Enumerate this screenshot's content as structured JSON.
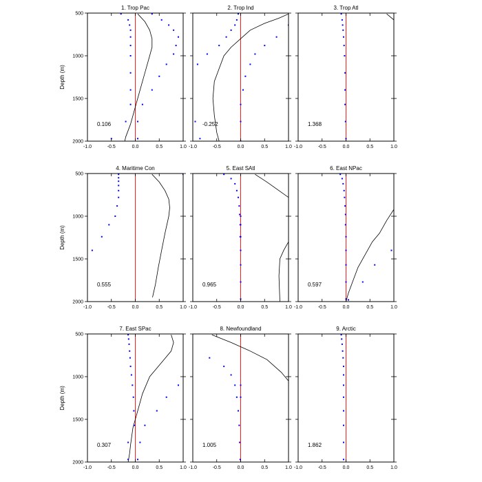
{
  "chart_data": {
    "type": "line",
    "layout": "3x3 panel grid",
    "ylabel": "Depth (m)",
    "xlim": [
      -1.0,
      1.0
    ],
    "ylim": [
      2000,
      500
    ],
    "y_inverted": true,
    "x_ticks": [
      -1.0,
      -0.5,
      0.0,
      0.5,
      1.0
    ],
    "x_tick_labels": [
      "-1.0",
      "-0.5",
      "0.0",
      "0.5",
      "1.0"
    ],
    "y_ticks": [
      500,
      1000,
      1500,
      2000
    ],
    "y_tick_labels": [
      "500",
      "1000",
      "1500",
      "2000"
    ],
    "zero_line_color": "#ff0000",
    "line_color": "#000000",
    "dot_color": "#0000ff",
    "panels": [
      {
        "title": "1. Trop Pac",
        "value_label": "0.106",
        "line": {
          "x": [
            0.05,
            0.2,
            0.3,
            0.35,
            0.35,
            0.3,
            0.2,
            0.1,
            0.0,
            -0.1,
            -0.2,
            -0.22
          ],
          "y": [
            510,
            600,
            700,
            800,
            900,
            1000,
            1200,
            1400,
            1600,
            1800,
            1950,
            2000
          ]
        },
        "dots": [
          {
            "x": [
              -0.3,
              -0.15,
              -0.12,
              -0.1,
              -0.1,
              -0.1,
              -0.1,
              -0.1,
              -0.1,
              -0.1,
              -0.2,
              -0.5
            ],
            "y": [
              510,
              580,
              640,
              700,
              780,
              880,
              1000,
              1200,
              1400,
              1570,
              1770,
              1970
            ]
          },
          {
            "x": [
              0.35,
              0.55,
              0.7,
              0.8,
              0.9,
              0.85,
              0.8,
              0.65,
              0.5,
              0.35,
              0.15,
              0.05,
              0.05
            ],
            "y": [
              510,
              580,
              640,
              700,
              780,
              880,
              980,
              1100,
              1240,
              1400,
              1570,
              1770,
              1970
            ]
          }
        ]
      },
      {
        "title": "2. Trop Ind",
        "value_label": "-0.252",
        "line": {
          "x": [
            1.0,
            0.8,
            0.5,
            0.2,
            0.0,
            -0.2,
            -0.35,
            -0.45,
            -0.55,
            -0.58,
            -0.55,
            -0.5,
            -0.45
          ],
          "y": [
            510,
            560,
            620,
            700,
            800,
            900,
            1000,
            1150,
            1300,
            1500,
            1700,
            1900,
            2000
          ]
        },
        "dots": [
          {
            "x": [
              -0.05,
              -0.08,
              -0.12,
              -0.2,
              -0.3,
              -0.45,
              -0.7,
              -0.9,
              -0.95,
              -0.85
            ],
            "y": [
              510,
              580,
              640,
              700,
              780,
              880,
              980,
              1100,
              1770,
              1970
            ]
          },
          {
            "x": [
              0.0,
              0.0,
              0.0,
              0.05,
              0.1,
              0.2,
              0.3,
              0.5,
              0.75,
              1.0
            ],
            "y": [
              2000,
              1770,
              1570,
              1400,
              1240,
              1100,
              980,
              880,
              780,
              640
            ]
          }
        ]
      },
      {
        "title": "3. Trop Atl",
        "value_label": "1.368",
        "line": {
          "x": [
            0.85,
            1.0
          ],
          "y": [
            510,
            580
          ]
        },
        "dots": [
          {
            "x": [
              -0.1,
              -0.08,
              -0.07,
              -0.06,
              -0.05,
              -0.04,
              -0.03,
              -0.02,
              -0.02,
              -0.02,
              -0.01,
              0.0
            ],
            "y": [
              510,
              580,
              640,
              700,
              780,
              880,
              1000,
              1200,
              1400,
              1570,
              1770,
              1970
            ]
          }
        ]
      },
      {
        "title": "4. Maritime Con",
        "value_label": "0.555",
        "line": {
          "x": [
            0.35,
            0.5,
            0.62,
            0.7,
            0.72,
            0.7,
            0.62,
            0.55,
            0.48,
            0.42,
            0.38,
            0.36
          ],
          "y": [
            510,
            600,
            700,
            800,
            900,
            1000,
            1200,
            1400,
            1600,
            1800,
            1900,
            1950
          ]
        },
        "dots": [
          {
            "x": [
              -0.35,
              -0.35,
              -0.35,
              -0.35,
              -0.35,
              -0.35,
              -0.38,
              -0.42,
              -0.55,
              -0.7,
              -0.9
            ],
            "y": [
              510,
              550,
              590,
              640,
              700,
              780,
              880,
              1000,
              1100,
              1240,
              1400
            ]
          },
          {
            "x": [
              1.0
            ],
            "y": [
              510
            ]
          }
        ]
      },
      {
        "title": "5. East SAtl",
        "value_label": "0.965",
        "line": {
          "x": [
            0.3,
            0.55,
            0.8,
            1.0
          ],
          "y": [
            510,
            600,
            700,
            780
          ]
        },
        "line2": {
          "x": [
            1.0,
            0.9,
            0.82,
            0.8,
            0.82
          ],
          "y": [
            1300,
            1400,
            1500,
            1700,
            2000
          ]
        },
        "dots": [
          {
            "x": [
              -0.35,
              -0.2,
              -0.12,
              -0.08,
              -0.05,
              -0.03,
              -0.02,
              -0.01,
              -0.01,
              0.0,
              0.0,
              0.0,
              0.0,
              0.0,
              0.0,
              0.0
            ],
            "y": [
              510,
              560,
              620,
              700,
              780,
              880,
              980,
              1100,
              1240,
              1400,
              1570,
              1770,
              1970,
              1240,
              1100,
              1000
            ]
          }
        ]
      },
      {
        "title": "6. East NPac",
        "value_label": "0.597",
        "line": {
          "x": [
            0.0,
            0.05,
            0.15,
            0.25,
            0.4,
            0.55,
            0.7,
            0.85,
            1.0
          ],
          "y": [
            2000,
            1900,
            1750,
            1600,
            1450,
            1300,
            1200,
            1050,
            920
          ]
        },
        "dots": [
          {
            "x": [
              -0.12,
              -0.08,
              -0.06,
              -0.04,
              -0.03,
              -0.02,
              -0.01,
              -0.01,
              0.0,
              0.0,
              0.0,
              0.0,
              0.0,
              0.05
            ],
            "y": [
              510,
              560,
              620,
              700,
              780,
              880,
              980,
              1100,
              1240,
              1400,
              1570,
              1770,
              1970,
              1980
            ]
          },
          {
            "x": [
              0.35,
              0.6,
              0.95
            ],
            "y": [
              1770,
              1570,
              1400
            ]
          }
        ]
      },
      {
        "title": "7. East SPac",
        "value_label": "0.307",
        "line": {
          "x": [
            0.75,
            0.8,
            0.75,
            0.6,
            0.45,
            0.3,
            0.15,
            0.05,
            -0.05,
            -0.1,
            -0.12,
            -0.15
          ],
          "y": [
            510,
            600,
            700,
            800,
            900,
            1000,
            1200,
            1400,
            1600,
            1800,
            1900,
            2000
          ]
        },
        "dots": [
          {
            "x": [
              -0.15,
              -0.14,
              -0.13,
              -0.12,
              -0.11,
              -0.1,
              -0.08,
              -0.06,
              -0.04,
              -0.03,
              -0.02,
              -0.15,
              -0.15
            ],
            "y": [
              510,
              560,
              620,
              700,
              780,
              880,
              980,
              1100,
              1240,
              1400,
              1570,
              1770,
              1970
            ]
          },
          {
            "x": [
              0.9,
              0.65,
              0.45,
              0.2,
              0.1,
              0.05
            ],
            "y": [
              1100,
              1240,
              1400,
              1570,
              1770,
              1970
            ]
          }
        ]
      },
      {
        "title": "8. Newfoundland",
        "value_label": "1.005",
        "line": {
          "x": [
            -0.6,
            -0.2,
            0.2,
            0.55,
            0.85,
            1.0
          ],
          "y": [
            510,
            600,
            700,
            800,
            950,
            1050
          ]
        },
        "dots": [
          {
            "x": [
              -0.65,
              -0.35,
              -0.2,
              -0.12,
              -0.08,
              -0.05,
              -0.03,
              -0.02,
              -0.01,
              0.0,
              0.0
            ],
            "y": [
              780,
              880,
              980,
              1100,
              1240,
              1400,
              1570,
              1770,
              1970,
              1240,
              1100
            ]
          }
        ]
      },
      {
        "title": "9. Arctic",
        "value_label": "1.862",
        "line": {
          "x": [],
          "y": []
        },
        "dots": [
          {
            "x": [
              -0.1,
              -0.09,
              -0.08,
              -0.07,
              -0.06,
              -0.05,
              -0.05,
              -0.05,
              -0.05,
              -0.05,
              -0.05,
              -0.05,
              -0.05
            ],
            "y": [
              510,
              560,
              620,
              700,
              780,
              880,
              980,
              1100,
              1240,
              1400,
              1570,
              1770,
              1970
            ]
          }
        ]
      }
    ]
  }
}
